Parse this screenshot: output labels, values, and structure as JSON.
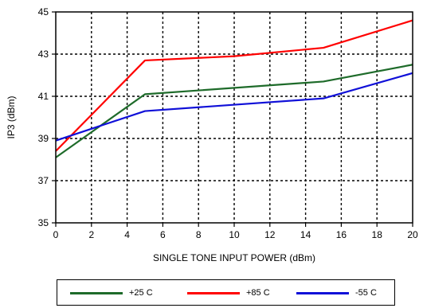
{
  "chart_data": {
    "type": "line",
    "xlabel": "SINGLE TONE INPUT POWER (dBm)",
    "ylabel": "IP3 (dBm)",
    "xlim": [
      0,
      20
    ],
    "ylim": [
      35,
      45
    ],
    "x_ticks": [
      "0",
      "2",
      "4",
      "6",
      "8",
      "10",
      "12",
      "14",
      "16",
      "18",
      "20"
    ],
    "y_ticks": [
      "35",
      "37",
      "39",
      "41",
      "43",
      "45"
    ],
    "grid": true,
    "legend_position": "bottom",
    "series": [
      {
        "name": "+25 C",
        "color": "#1e6b2a",
        "x": [
          0,
          5,
          15,
          20
        ],
        "y": [
          38.1,
          41.1,
          41.7,
          42.5
        ]
      },
      {
        "name": "+85 C",
        "color": "#ff0000",
        "x": [
          0,
          5,
          10,
          15,
          20
        ],
        "y": [
          38.4,
          42.7,
          42.9,
          43.3,
          44.6
        ]
      },
      {
        "name": "-55 C",
        "color": "#1010d8",
        "x": [
          0,
          5,
          15,
          20
        ],
        "y": [
          38.9,
          40.3,
          40.9,
          42.1
        ]
      }
    ]
  }
}
